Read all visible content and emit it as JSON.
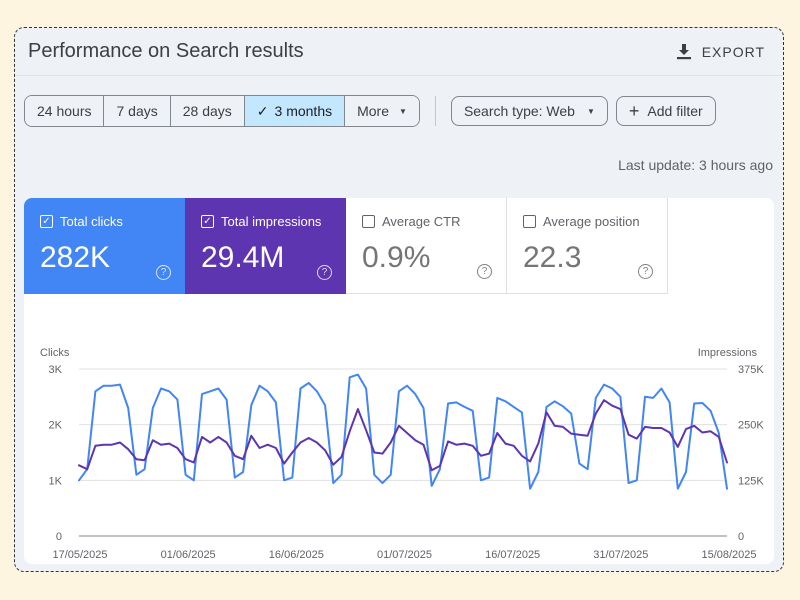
{
  "header": {
    "title": "Performance on Search results",
    "export_label": "EXPORT"
  },
  "date_ranges": [
    "24 hours",
    "7 days",
    "28 days",
    "3 months",
    "More"
  ],
  "date_range_selected": "3 months",
  "search_type_label": "Search type: Web",
  "add_filter_label": "Add filter",
  "last_update": "Last update: 3 hours ago",
  "metrics": {
    "clicks": {
      "label": "Total clicks",
      "value": "282K",
      "checked": true
    },
    "impressions": {
      "label": "Total impressions",
      "value": "29.4M",
      "checked": true
    },
    "ctr": {
      "label": "Average CTR",
      "value": "0.9%",
      "checked": false
    },
    "position": {
      "label": "Average position",
      "value": "22.3",
      "checked": false
    }
  },
  "colors": {
    "clicks": "#4285f4",
    "impressions": "#5e35b1"
  },
  "chart_data": {
    "type": "line",
    "y_left_label": "Clicks",
    "y_right_label": "Impressions",
    "y_left_ticks": [
      "0",
      "1K",
      "2K",
      "3K"
    ],
    "y_right_ticks": [
      "0",
      "125K",
      "250K",
      "375K"
    ],
    "y_left_range": [
      0,
      3000
    ],
    "y_right_range": [
      0,
      375000
    ],
    "x_ticks": [
      "17/05/2025",
      "01/06/2025",
      "16/06/2025",
      "01/07/2025",
      "16/07/2025",
      "31/07/2025",
      "15/08/2025"
    ],
    "x_start": "17/05/2025",
    "x_end": "15/08/2025",
    "grid": true,
    "series": [
      {
        "name": "Clicks",
        "axis": "left",
        "values": [
          1000,
          1200,
          2600,
          2700,
          2700,
          2720,
          2300,
          1100,
          1200,
          2300,
          2650,
          2600,
          2450,
          1100,
          1000,
          2550,
          2600,
          2650,
          2450,
          1050,
          1150,
          2350,
          2700,
          2600,
          2400,
          1000,
          1050,
          2650,
          2750,
          2600,
          2350,
          950,
          1100,
          2850,
          2900,
          2650,
          1100,
          950,
          1100,
          2600,
          2700,
          2550,
          2300,
          900,
          1200,
          2380,
          2400,
          2320,
          2250,
          1000,
          1050,
          2480,
          2420,
          2320,
          2220,
          850,
          1150,
          2320,
          2420,
          2330,
          2200,
          1300,
          1200,
          2480,
          2720,
          2650,
          2500,
          950,
          1000,
          2500,
          2480,
          2650,
          2400,
          850,
          1150,
          2380,
          2390,
          2250,
          1850,
          850
        ]
      },
      {
        "name": "Impressions",
        "axis": "left",
        "values": [
          1270,
          1200,
          1620,
          1640,
          1640,
          1680,
          1560,
          1380,
          1360,
          1720,
          1640,
          1660,
          1580,
          1380,
          1320,
          1780,
          1680,
          1780,
          1680,
          1440,
          1380,
          1800,
          1580,
          1640,
          1580,
          1300,
          1500,
          1680,
          1760,
          1680,
          1540,
          1280,
          1420,
          1880,
          2280,
          1900,
          1500,
          1480,
          1680,
          1980,
          1850,
          1720,
          1640,
          1180,
          1260,
          1700,
          1640,
          1660,
          1620,
          1440,
          1480,
          1850,
          1660,
          1620,
          1440,
          1340,
          1660,
          2220,
          1980,
          1960,
          1840,
          1820,
          1800,
          2200,
          2440,
          2340,
          2280,
          1820,
          1750,
          1960,
          1940,
          1940,
          1860,
          1600,
          1920,
          1980,
          1860,
          1880,
          1780,
          1320
        ]
      }
    ]
  }
}
